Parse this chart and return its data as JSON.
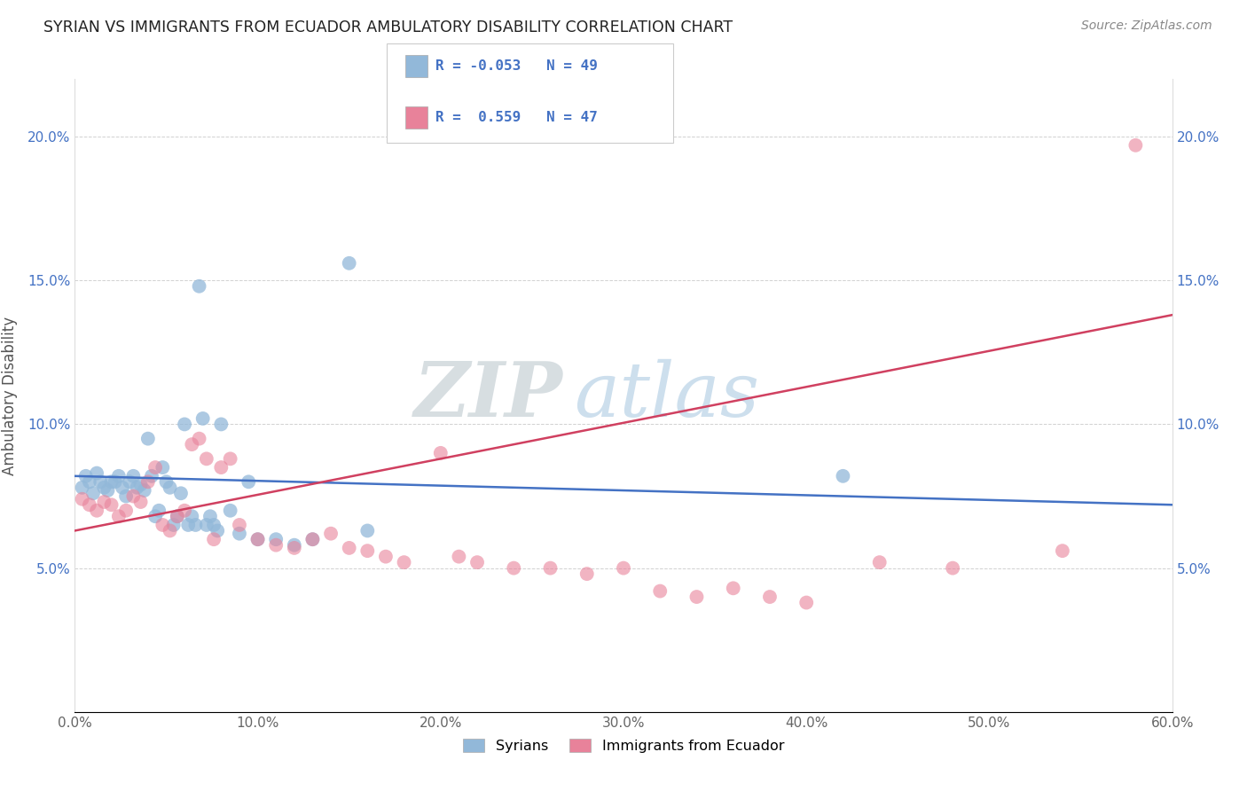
{
  "title": "SYRIAN VS IMMIGRANTS FROM ECUADOR AMBULATORY DISABILITY CORRELATION CHART",
  "source": "Source: ZipAtlas.com",
  "ylabel": "Ambulatory Disability",
  "xlim": [
    0.0,
    0.6
  ],
  "ylim": [
    0.0,
    0.22
  ],
  "xticks": [
    0.0,
    0.1,
    0.2,
    0.3,
    0.4,
    0.5,
    0.6
  ],
  "yticks": [
    0.05,
    0.1,
    0.15,
    0.2
  ],
  "xtick_labels": [
    "0.0%",
    "10.0%",
    "20.0%",
    "30.0%",
    "40.0%",
    "50.0%",
    "60.0%"
  ],
  "ytick_labels": [
    "5.0%",
    "10.0%",
    "15.0%",
    "20.0%"
  ],
  "blue_color": "#92b8d9",
  "pink_color": "#e8829a",
  "blue_line_color": "#4472c4",
  "pink_line_color": "#d04060",
  "watermark_zip": "ZIP",
  "watermark_atlas": "atlas",
  "background_color": "#ffffff",
  "grid_color": "#cccccc",
  "syrians_x": [
    0.004,
    0.006,
    0.008,
    0.01,
    0.012,
    0.014,
    0.016,
    0.018,
    0.02,
    0.022,
    0.024,
    0.026,
    0.028,
    0.03,
    0.032,
    0.034,
    0.036,
    0.038,
    0.04,
    0.042,
    0.044,
    0.046,
    0.048,
    0.05,
    0.052,
    0.054,
    0.056,
    0.058,
    0.06,
    0.062,
    0.064,
    0.066,
    0.068,
    0.07,
    0.072,
    0.074,
    0.076,
    0.078,
    0.08,
    0.085,
    0.09,
    0.095,
    0.1,
    0.11,
    0.12,
    0.13,
    0.15,
    0.16,
    0.42
  ],
  "syrians_y": [
    0.078,
    0.082,
    0.08,
    0.076,
    0.083,
    0.08,
    0.078,
    0.077,
    0.08,
    0.08,
    0.082,
    0.078,
    0.075,
    0.08,
    0.082,
    0.078,
    0.079,
    0.077,
    0.095,
    0.082,
    0.068,
    0.07,
    0.085,
    0.08,
    0.078,
    0.065,
    0.068,
    0.076,
    0.1,
    0.065,
    0.068,
    0.065,
    0.148,
    0.102,
    0.065,
    0.068,
    0.065,
    0.063,
    0.1,
    0.07,
    0.062,
    0.08,
    0.06,
    0.06,
    0.058,
    0.06,
    0.156,
    0.063,
    0.082
  ],
  "ecuador_x": [
    0.004,
    0.008,
    0.012,
    0.016,
    0.02,
    0.024,
    0.028,
    0.032,
    0.036,
    0.04,
    0.044,
    0.048,
    0.052,
    0.056,
    0.06,
    0.064,
    0.068,
    0.072,
    0.076,
    0.08,
    0.085,
    0.09,
    0.1,
    0.11,
    0.12,
    0.13,
    0.14,
    0.15,
    0.16,
    0.17,
    0.18,
    0.2,
    0.21,
    0.22,
    0.24,
    0.26,
    0.28,
    0.3,
    0.32,
    0.34,
    0.36,
    0.38,
    0.4,
    0.44,
    0.48,
    0.54,
    0.58
  ],
  "ecuador_y": [
    0.074,
    0.072,
    0.07,
    0.073,
    0.072,
    0.068,
    0.07,
    0.075,
    0.073,
    0.08,
    0.085,
    0.065,
    0.063,
    0.068,
    0.07,
    0.093,
    0.095,
    0.088,
    0.06,
    0.085,
    0.088,
    0.065,
    0.06,
    0.058,
    0.057,
    0.06,
    0.062,
    0.057,
    0.056,
    0.054,
    0.052,
    0.09,
    0.054,
    0.052,
    0.05,
    0.05,
    0.048,
    0.05,
    0.042,
    0.04,
    0.043,
    0.04,
    0.038,
    0.052,
    0.05,
    0.056,
    0.197
  ],
  "blue_R": -0.053,
  "blue_N": 49,
  "pink_R": 0.559,
  "pink_N": 47
}
